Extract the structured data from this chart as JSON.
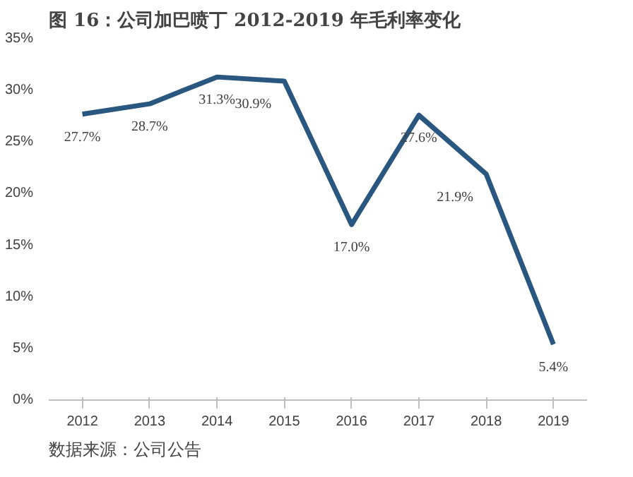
{
  "chart_data": {
    "type": "line",
    "title": "图 16：公司加巴喷丁 2012-2019 年毛利率变化",
    "annotations": [
      "数据来源：公司公告"
    ],
    "x": [
      2012,
      2013,
      2014,
      2015,
      2016,
      2017,
      2018,
      2019
    ],
    "series": [
      {
        "color": "#2a5780",
        "values": [
          27.7,
          28.7,
          31.3,
          30.9,
          17.0,
          27.6,
          21.9,
          5.4
        ]
      }
    ],
    "xlim": [
      2011.5,
      2019.5
    ],
    "xticks": [
      2012,
      2013,
      2014,
      2015,
      2016,
      2017,
      2018,
      2019
    ],
    "ylim": [
      0,
      35
    ],
    "yticks": [
      {
        "value": 0,
        "label": "0%"
      },
      {
        "value": 5,
        "label": "5%"
      },
      {
        "value": 10,
        "label": "10%"
      },
      {
        "value": 15,
        "label": "15%"
      },
      {
        "value": 20,
        "label": "20%"
      },
      {
        "value": 25,
        "label": "25%"
      },
      {
        "value": 30,
        "label": "30%"
      },
      {
        "value": 35,
        "label": "35%"
      }
    ],
    "value_labels": [
      "27.7%",
      "28.7%",
      "31.3%",
      "30.9%",
      "17.0%",
      "27.6%",
      "21.9%",
      "5.4%"
    ],
    "grid": false,
    "marker": "none",
    "line_style": "solid"
  }
}
